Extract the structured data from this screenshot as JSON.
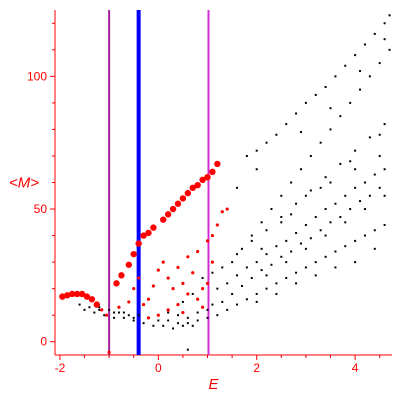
{
  "chart_data": {
    "type": "scatter",
    "xlabel": "E",
    "ylabel": "<M>",
    "xlim": [
      -2.1,
      4.75
    ],
    "ylim": [
      -5,
      125
    ],
    "x_ticks": [
      -2,
      0,
      2,
      4
    ],
    "y_ticks": [
      0,
      50,
      100
    ],
    "grid": false,
    "colors": {
      "axis": "#ff0000",
      "background_points": "#000000",
      "highlight_points": "#ff0000",
      "blue_line": "#0000ff",
      "purple_line": "#a020a0",
      "magenta_line": "#d42ad4"
    },
    "vertical_lines": [
      {
        "x": -1.0,
        "color": "purple"
      },
      {
        "x": -0.4,
        "color": "blue"
      },
      {
        "x": 1.02,
        "color": "magenta"
      }
    ],
    "series": [
      {
        "color": "red",
        "points": [
          [
            -1.95,
            17
          ],
          [
            -1.85,
            17.5
          ],
          [
            -1.75,
            18
          ],
          [
            -1.65,
            18
          ],
          [
            -1.55,
            18
          ],
          [
            -1.45,
            17
          ],
          [
            -1.35,
            16
          ],
          [
            -1.25,
            14
          ],
          [
            -1.15,
            12
          ],
          [
            -1.05,
            10
          ],
          [
            -0.85,
            22
          ],
          [
            -0.75,
            25
          ],
          [
            -0.6,
            29
          ],
          [
            -0.5,
            33
          ],
          [
            -0.4,
            37
          ],
          [
            -0.3,
            40
          ],
          [
            -0.2,
            41
          ],
          [
            -0.1,
            43
          ],
          [
            0.1,
            46
          ],
          [
            0.2,
            48
          ],
          [
            0.3,
            50
          ],
          [
            0.4,
            52
          ],
          [
            0.5,
            54
          ],
          [
            0.6,
            56
          ],
          [
            0.7,
            58
          ],
          [
            0.8,
            59
          ],
          [
            0.9,
            61
          ],
          [
            1.0,
            62
          ],
          [
            1.1,
            64
          ],
          [
            1.2,
            67
          ],
          [
            -0.8,
            13
          ],
          [
            -0.6,
            15
          ],
          [
            -0.5,
            20
          ],
          [
            -0.4,
            24
          ],
          [
            -0.3,
            14
          ],
          [
            -0.2,
            16
          ],
          [
            -0.1,
            21
          ],
          [
            0.0,
            27
          ],
          [
            0.1,
            30
          ],
          [
            0.2,
            24
          ],
          [
            0.3,
            20
          ],
          [
            0.4,
            28
          ],
          [
            0.5,
            22
          ],
          [
            0.6,
            18
          ],
          [
            0.7,
            26
          ],
          [
            0.8,
            16
          ],
          [
            0.9,
            20
          ],
          [
            1.0,
            22
          ],
          [
            1.1,
            30
          ],
          [
            0.2,
            12
          ],
          [
            0.4,
            14
          ],
          [
            0.6,
            32
          ],
          [
            0.8,
            34
          ],
          [
            1.0,
            38
          ],
          [
            1.1,
            40
          ],
          [
            1.2,
            44
          ],
          [
            1.3,
            49
          ],
          [
            1.4,
            50
          ],
          [
            0.0,
            10
          ],
          [
            -0.2,
            9
          ],
          [
            0.5,
            11
          ],
          [
            0.9,
            13
          ],
          [
            -1.0,
            -4
          ]
        ]
      },
      {
        "color": "black",
        "points": [
          [
            -1.2,
            13
          ],
          [
            -1.0,
            12
          ],
          [
            -0.8,
            11
          ],
          [
            -0.6,
            10
          ],
          [
            -0.4,
            10
          ],
          [
            -0.2,
            9
          ],
          [
            0.0,
            8
          ],
          [
            0.2,
            8
          ],
          [
            0.4,
            7
          ],
          [
            0.6,
            7
          ],
          [
            0.8,
            8
          ],
          [
            1.0,
            9
          ],
          [
            -1.5,
            12
          ],
          [
            -1.3,
            11
          ],
          [
            -1.1,
            10
          ],
          [
            -0.9,
            9
          ],
          [
            -0.7,
            9
          ],
          [
            -0.5,
            8
          ],
          [
            -0.3,
            7
          ],
          [
            -0.1,
            6
          ],
          [
            0.1,
            6
          ],
          [
            0.3,
            5
          ],
          [
            0.5,
            6
          ],
          [
            0.7,
            6
          ],
          [
            1.2,
            10
          ],
          [
            1.4,
            12
          ],
          [
            1.6,
            14
          ],
          [
            1.8,
            16
          ],
          [
            2.0,
            18
          ],
          [
            2.2,
            20
          ],
          [
            2.4,
            22
          ],
          [
            2.6,
            24
          ],
          [
            2.8,
            26
          ],
          [
            3.0,
            28
          ],
          [
            3.2,
            30
          ],
          [
            3.4,
            32
          ],
          [
            3.6,
            34
          ],
          [
            3.8,
            36
          ],
          [
            4.0,
            38
          ],
          [
            4.2,
            40
          ],
          [
            4.4,
            42
          ],
          [
            4.6,
            44
          ],
          [
            1.2,
            20
          ],
          [
            1.4,
            22
          ],
          [
            1.6,
            25
          ],
          [
            1.8,
            28
          ],
          [
            2.0,
            30
          ],
          [
            2.2,
            33
          ],
          [
            2.4,
            36
          ],
          [
            2.6,
            38
          ],
          [
            2.8,
            41
          ],
          [
            3.0,
            44
          ],
          [
            3.2,
            47
          ],
          [
            3.4,
            50
          ],
          [
            3.6,
            52
          ],
          [
            3.8,
            55
          ],
          [
            4.0,
            58
          ],
          [
            4.2,
            60
          ],
          [
            4.4,
            63
          ],
          [
            4.6,
            65
          ],
          [
            1.5,
            30
          ],
          [
            1.7,
            35
          ],
          [
            1.9,
            40
          ],
          [
            2.1,
            45
          ],
          [
            2.3,
            50
          ],
          [
            2.5,
            55
          ],
          [
            2.7,
            60
          ],
          [
            2.9,
            65
          ],
          [
            3.1,
            70
          ],
          [
            3.3,
            75
          ],
          [
            3.5,
            80
          ],
          [
            3.7,
            85
          ],
          [
            3.9,
            90
          ],
          [
            4.1,
            95
          ],
          [
            4.3,
            100
          ],
          [
            4.5,
            105
          ],
          [
            4.7,
            110
          ],
          [
            1.8,
            70
          ],
          [
            2.0,
            72
          ],
          [
            2.2,
            75
          ],
          [
            2.4,
            78
          ],
          [
            2.6,
            82
          ],
          [
            2.8,
            86
          ],
          [
            3.0,
            90
          ],
          [
            3.2,
            93
          ],
          [
            3.4,
            96
          ],
          [
            3.6,
            100
          ],
          [
            3.8,
            104
          ],
          [
            4.0,
            108
          ],
          [
            4.2,
            112
          ],
          [
            4.4,
            116
          ],
          [
            4.6,
            120
          ],
          [
            4.7,
            123
          ],
          [
            2.0,
            15
          ],
          [
            2.2,
            25
          ],
          [
            2.4,
            18
          ],
          [
            2.6,
            30
          ],
          [
            2.8,
            22
          ],
          [
            3.0,
            35
          ],
          [
            3.2,
            25
          ],
          [
            3.4,
            40
          ],
          [
            3.6,
            28
          ],
          [
            3.8,
            45
          ],
          [
            4.0,
            30
          ],
          [
            4.2,
            50
          ],
          [
            4.4,
            35
          ],
          [
            4.6,
            55
          ],
          [
            2.5,
            45
          ],
          [
            3.0,
            55
          ],
          [
            3.5,
            60
          ],
          [
            4.0,
            65
          ],
          [
            4.5,
            70
          ],
          [
            2.1,
            35
          ],
          [
            2.7,
            48
          ],
          [
            3.3,
            58
          ],
          [
            3.9,
            68
          ],
          [
            4.5,
            78
          ],
          [
            1.3,
            15
          ],
          [
            1.5,
            18
          ],
          [
            1.7,
            21
          ],
          [
            1.9,
            24
          ],
          [
            2.1,
            27
          ],
          [
            2.3,
            29
          ],
          [
            2.5,
            32
          ],
          [
            2.7,
            34
          ],
          [
            2.9,
            37
          ],
          [
            3.1,
            39
          ],
          [
            3.3,
            42
          ],
          [
            3.5,
            45
          ],
          [
            3.7,
            47
          ],
          [
            3.9,
            50
          ],
          [
            4.1,
            53
          ],
          [
            4.3,
            55
          ],
          [
            4.5,
            58
          ],
          [
            -1.6,
            14
          ],
          [
            -1.4,
            13
          ],
          [
            -1.2,
            12
          ],
          [
            -0.9,
            11
          ],
          [
            -0.7,
            11
          ],
          [
            -0.5,
            9
          ],
          [
            0.2,
            11
          ],
          [
            0.4,
            10
          ],
          [
            0.6,
            9
          ],
          [
            0.8,
            11
          ],
          [
            1.0,
            12
          ],
          [
            1.1,
            14
          ],
          [
            0.5,
            15
          ],
          [
            0.7,
            18
          ],
          [
            0.9,
            24
          ],
          [
            1.1,
            26
          ],
          [
            1.3,
            28
          ],
          [
            1.6,
            33
          ],
          [
            1.9,
            38
          ],
          [
            2.2,
            42
          ],
          [
            2.5,
            47
          ],
          [
            2.8,
            52
          ],
          [
            3.1,
            57
          ],
          [
            3.4,
            62
          ],
          [
            3.7,
            67
          ],
          [
            4.0,
            72
          ],
          [
            4.3,
            77
          ],
          [
            4.6,
            82
          ],
          [
            0.6,
            -3
          ],
          [
            1.6,
            58
          ],
          [
            2.0,
            65
          ],
          [
            2.9,
            79
          ],
          [
            3.5,
            88
          ],
          [
            4.1,
            102
          ],
          [
            4.6,
            114
          ]
        ]
      }
    ]
  }
}
